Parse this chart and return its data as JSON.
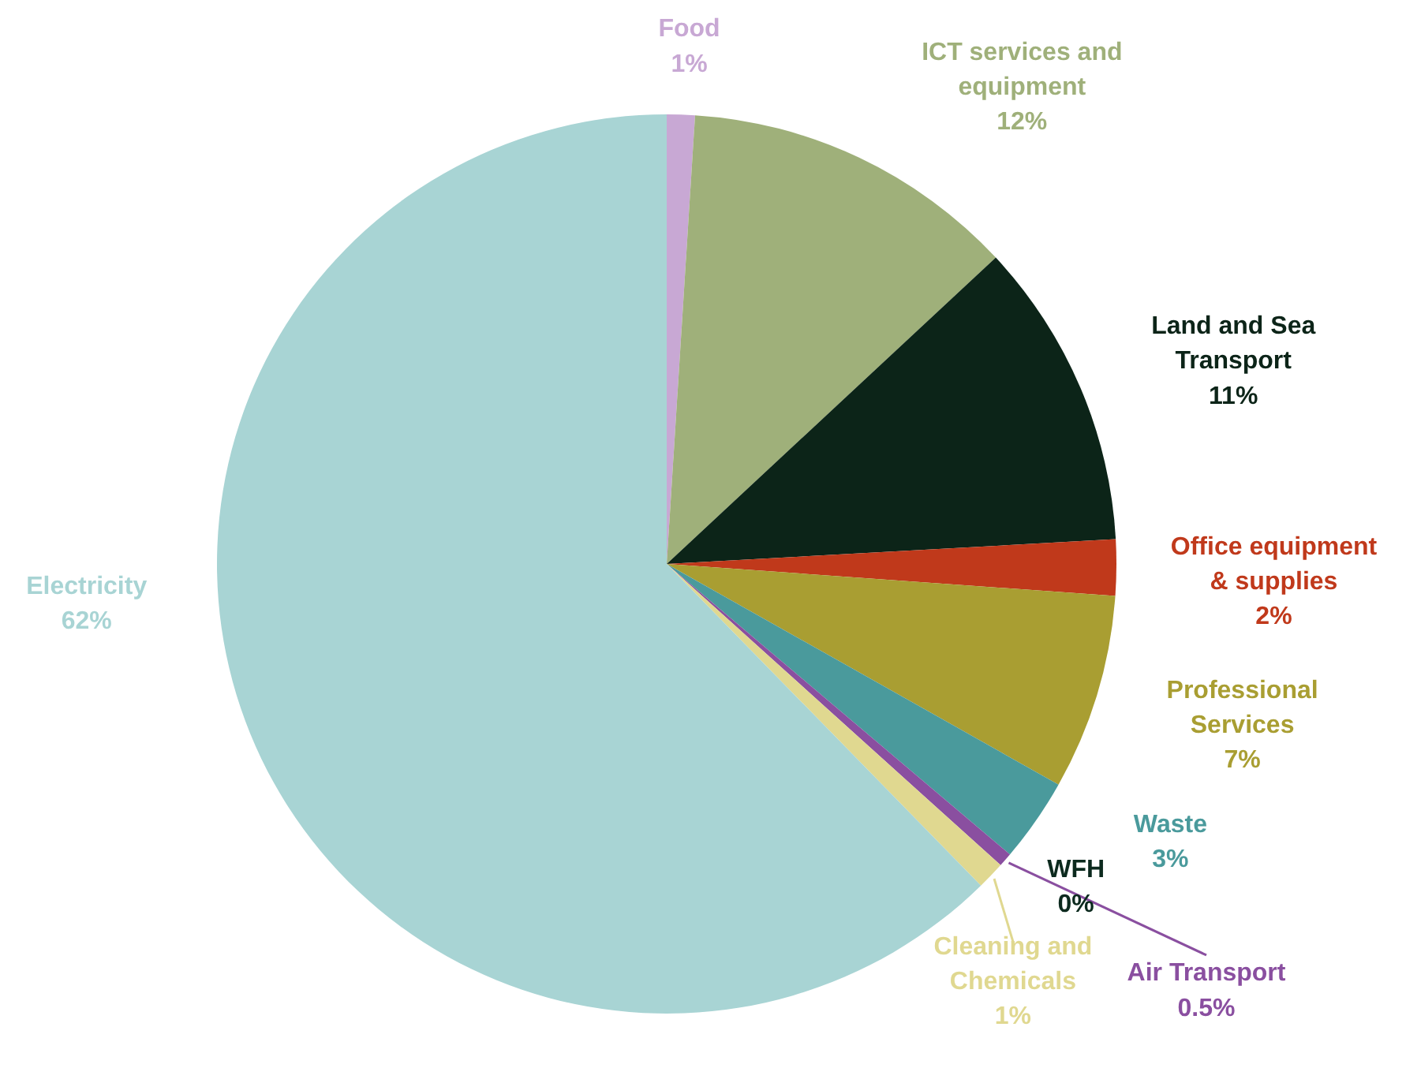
{
  "chart_data": {
    "type": "pie",
    "categories": [
      "Food",
      "ICT services and equipment",
      "Land and Sea Transport",
      "Office equipment & supplies",
      "Professional Services",
      "Waste",
      "Air Transport",
      "WFH",
      "Cleaning and Chemicals",
      "Electricity"
    ],
    "values": [
      1,
      12,
      11,
      2,
      7,
      3,
      0.5,
      0,
      1,
      62
    ],
    "value_labels": [
      "1%",
      "12%",
      "11%",
      "2%",
      "7%",
      "3%",
      "0.5%",
      "0%",
      "1%",
      "62%"
    ],
    "colors": [
      "#c8a8d4",
      "#9fb07a",
      "#0c2418",
      "#c0391b",
      "#a99e32",
      "#4a9a9c",
      "#8a4fa0",
      "#0c2a1e",
      "#e0d890",
      "#a8d4d4"
    ]
  }
}
